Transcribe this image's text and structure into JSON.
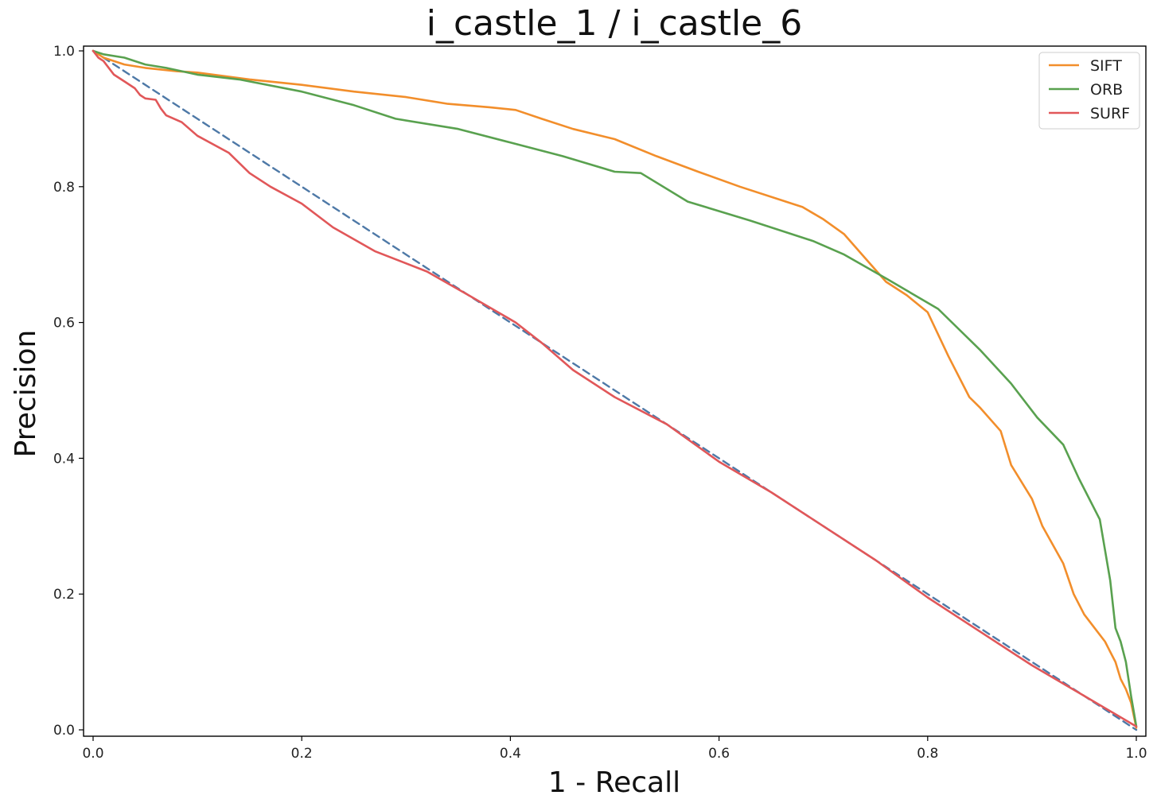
{
  "chart_data": {
    "type": "line",
    "title": "i_castle_1 / i_castle_6",
    "xlabel": "1 - Recall",
    "ylabel": "Precision",
    "xlim": [
      0,
      1
    ],
    "ylim": [
      0,
      1
    ],
    "xticks": [
      "0.0",
      "0.2",
      "0.4",
      "0.6",
      "0.8",
      "1.0"
    ],
    "yticks": [
      "0.0",
      "0.2",
      "0.4",
      "0.6",
      "0.8",
      "1.0"
    ],
    "grid": false,
    "legend_position": "top-right",
    "series": [
      {
        "name": "SIFT",
        "color": "#f28e2b",
        "dashed": false,
        "x": [
          0,
          0.01,
          0.03,
          0.05,
          0.08,
          0.1,
          0.15,
          0.2,
          0.25,
          0.3,
          0.34,
          0.38,
          0.405,
          0.43,
          0.46,
          0.5,
          0.54,
          0.58,
          0.62,
          0.66,
          0.68,
          0.7,
          0.72,
          0.74,
          0.76,
          0.78,
          0.8,
          0.82,
          0.84,
          0.85,
          0.87,
          0.88,
          0.9,
          0.91,
          0.93,
          0.94,
          0.95,
          0.96,
          0.97,
          0.975,
          0.98,
          0.985,
          0.99,
          0.995,
          1.0
        ],
        "y": [
          1.0,
          0.99,
          0.98,
          0.975,
          0.97,
          0.968,
          0.958,
          0.95,
          0.94,
          0.932,
          0.922,
          0.917,
          0.913,
          0.9,
          0.885,
          0.87,
          0.845,
          0.822,
          0.8,
          0.78,
          0.77,
          0.752,
          0.73,
          0.695,
          0.66,
          0.64,
          0.615,
          0.55,
          0.49,
          0.475,
          0.44,
          0.39,
          0.34,
          0.3,
          0.245,
          0.2,
          0.17,
          0.15,
          0.13,
          0.115,
          0.1,
          0.075,
          0.06,
          0.04,
          0.003
        ]
      },
      {
        "name": "ORB",
        "color": "#59a14f",
        "dashed": false,
        "x": [
          0,
          0.01,
          0.03,
          0.05,
          0.07,
          0.1,
          0.14,
          0.2,
          0.25,
          0.29,
          0.35,
          0.4,
          0.45,
          0.5,
          0.525,
          0.57,
          0.63,
          0.69,
          0.72,
          0.76,
          0.81,
          0.85,
          0.88,
          0.905,
          0.93,
          0.945,
          0.965,
          0.975,
          0.98,
          0.985,
          0.99,
          0.995,
          1.0
        ],
        "y": [
          1.0,
          0.995,
          0.99,
          0.98,
          0.975,
          0.965,
          0.958,
          0.94,
          0.92,
          0.9,
          0.885,
          0.865,
          0.845,
          0.822,
          0.82,
          0.778,
          0.75,
          0.72,
          0.7,
          0.665,
          0.62,
          0.56,
          0.51,
          0.46,
          0.42,
          0.37,
          0.31,
          0.22,
          0.15,
          0.13,
          0.1,
          0.05,
          0.005
        ]
      },
      {
        "name": "SURF",
        "color": "#e15759",
        "dashed": false,
        "x": [
          0,
          0.005,
          0.01,
          0.02,
          0.03,
          0.04,
          0.045,
          0.05,
          0.06,
          0.065,
          0.07,
          0.085,
          0.1,
          0.13,
          0.15,
          0.17,
          0.2,
          0.23,
          0.27,
          0.32,
          0.36,
          0.405,
          0.43,
          0.46,
          0.5,
          0.55,
          0.6,
          0.65,
          0.7,
          0.75,
          0.8,
          0.85,
          0.9,
          0.95,
          1.0
        ],
        "y": [
          1.0,
          0.99,
          0.985,
          0.965,
          0.955,
          0.945,
          0.935,
          0.93,
          0.928,
          0.915,
          0.905,
          0.895,
          0.875,
          0.85,
          0.82,
          0.8,
          0.775,
          0.74,
          0.705,
          0.675,
          0.64,
          0.6,
          0.57,
          0.53,
          0.49,
          0.45,
          0.395,
          0.35,
          0.3,
          0.25,
          0.195,
          0.145,
          0.095,
          0.05,
          0.005
        ]
      },
      {
        "color": "#4e79a7",
        "dashed": true,
        "x": [
          0,
          1
        ],
        "y": [
          1,
          0
        ]
      }
    ]
  }
}
